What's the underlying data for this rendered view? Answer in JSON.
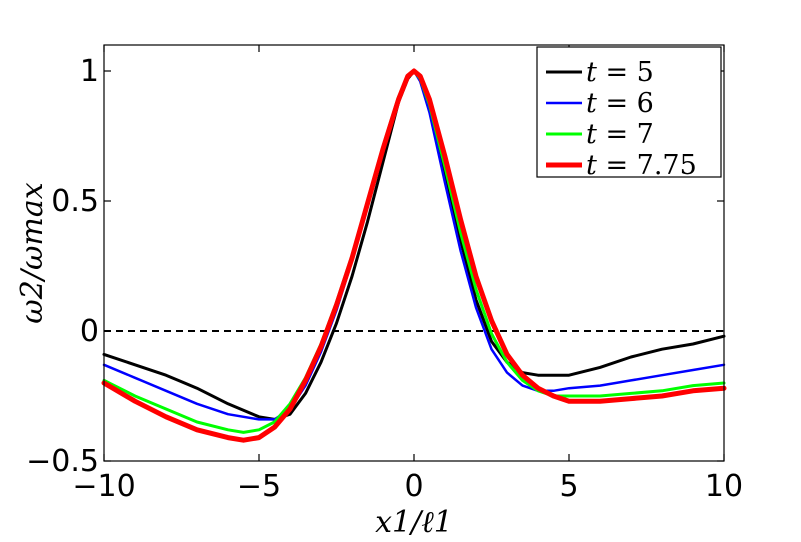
{
  "chart_data": {
    "type": "line",
    "xlabel": "x1/ℓ1",
    "ylabel": "ω2/ωmax",
    "xlim": [
      -10,
      10
    ],
    "ylim": [
      -0.5,
      1.1
    ],
    "xticks": [
      -10,
      -5,
      0,
      5,
      10
    ],
    "xtick_labels": [
      "−10",
      "−5",
      "0",
      "5",
      "10"
    ],
    "yticks": [
      -0.5,
      0,
      0.5,
      1
    ],
    "ytick_labels": [
      "−0.5",
      "0",
      "0.5",
      "1"
    ],
    "legend_position": "top-right",
    "reference_line": {
      "y": 0,
      "style": "dashed",
      "color": "#000000"
    },
    "series": [
      {
        "name": "t = 5",
        "legend_var": "t",
        "legend_eq": "= 5",
        "color": "#000000",
        "stroke_width": 3,
        "x": [
          -10,
          -9,
          -8,
          -7,
          -6,
          -5,
          -4.5,
          -4,
          -3.5,
          -3,
          -2.5,
          -2,
          -1.5,
          -1,
          -0.5,
          -0.2,
          0,
          0.2,
          0.5,
          1,
          1.5,
          2,
          2.5,
          3,
          3.5,
          4,
          4.5,
          5,
          6,
          7,
          8,
          9,
          10
        ],
        "y": [
          -0.09,
          -0.13,
          -0.17,
          -0.22,
          -0.28,
          -0.33,
          -0.34,
          -0.32,
          -0.24,
          -0.12,
          0.03,
          0.21,
          0.42,
          0.65,
          0.88,
          0.97,
          1.0,
          0.97,
          0.85,
          0.6,
          0.35,
          0.12,
          -0.04,
          -0.12,
          -0.16,
          -0.17,
          -0.17,
          -0.17,
          -0.14,
          -0.1,
          -0.07,
          -0.05,
          -0.02
        ]
      },
      {
        "name": "t = 6",
        "legend_var": "t",
        "legend_eq": "= 6",
        "color": "#0000ff",
        "stroke_width": 2.5,
        "x": [
          -10,
          -9,
          -8,
          -7,
          -6,
          -5,
          -4.5,
          -4,
          -3.5,
          -3,
          -2.5,
          -2,
          -1.5,
          -1,
          -0.5,
          -0.2,
          0,
          0.2,
          0.5,
          1,
          1.5,
          2,
          2.5,
          3,
          3.5,
          4,
          4.5,
          5,
          6,
          7,
          8,
          9,
          10
        ],
        "y": [
          -0.13,
          -0.18,
          -0.23,
          -0.28,
          -0.32,
          -0.34,
          -0.34,
          -0.3,
          -0.21,
          -0.08,
          0.08,
          0.27,
          0.48,
          0.7,
          0.9,
          0.98,
          1.0,
          0.96,
          0.84,
          0.57,
          0.31,
          0.09,
          -0.07,
          -0.16,
          -0.21,
          -0.23,
          -0.23,
          -0.22,
          -0.21,
          -0.19,
          -0.17,
          -0.15,
          -0.13
        ]
      },
      {
        "name": "t = 7",
        "legend_var": "t",
        "legend_eq": "= 7",
        "color": "#00ff00",
        "stroke_width": 3,
        "x": [
          -10,
          -9,
          -8,
          -7,
          -6,
          -5.5,
          -5,
          -4.5,
          -4,
          -3.5,
          -3,
          -2.5,
          -2,
          -1.5,
          -1,
          -0.5,
          -0.2,
          0,
          0.2,
          0.5,
          1,
          1.5,
          2,
          2.5,
          3,
          3.5,
          4,
          4.5,
          5,
          6,
          7,
          8,
          9,
          10
        ],
        "y": [
          -0.19,
          -0.25,
          -0.3,
          -0.35,
          -0.38,
          -0.39,
          -0.38,
          -0.35,
          -0.28,
          -0.18,
          -0.05,
          0.11,
          0.29,
          0.5,
          0.71,
          0.9,
          0.98,
          1.0,
          0.97,
          0.87,
          0.63,
          0.38,
          0.16,
          -0.01,
          -0.12,
          -0.19,
          -0.23,
          -0.25,
          -0.25,
          -0.25,
          -0.24,
          -0.23,
          -0.21,
          -0.2
        ]
      },
      {
        "name": "t = 7.75",
        "legend_var": "t",
        "legend_eq": "= 7.75",
        "color": "#ff0000",
        "stroke_width": 5,
        "x": [
          -10,
          -9,
          -8,
          -7,
          -6,
          -5.5,
          -5,
          -4.5,
          -4,
          -3.5,
          -3,
          -2.5,
          -2,
          -1.5,
          -1,
          -0.5,
          -0.2,
          0,
          0.2,
          0.5,
          1,
          1.5,
          2,
          2.5,
          3,
          3.5,
          4,
          4.5,
          5,
          5.5,
          6,
          7,
          8,
          9,
          10
        ],
        "y": [
          -0.2,
          -0.27,
          -0.33,
          -0.38,
          -0.41,
          -0.42,
          -0.41,
          -0.37,
          -0.3,
          -0.19,
          -0.06,
          0.1,
          0.28,
          0.49,
          0.7,
          0.89,
          0.98,
          1.0,
          0.98,
          0.89,
          0.67,
          0.43,
          0.21,
          0.04,
          -0.09,
          -0.17,
          -0.22,
          -0.25,
          -0.27,
          -0.27,
          -0.27,
          -0.26,
          -0.25,
          -0.23,
          -0.22
        ]
      }
    ]
  }
}
